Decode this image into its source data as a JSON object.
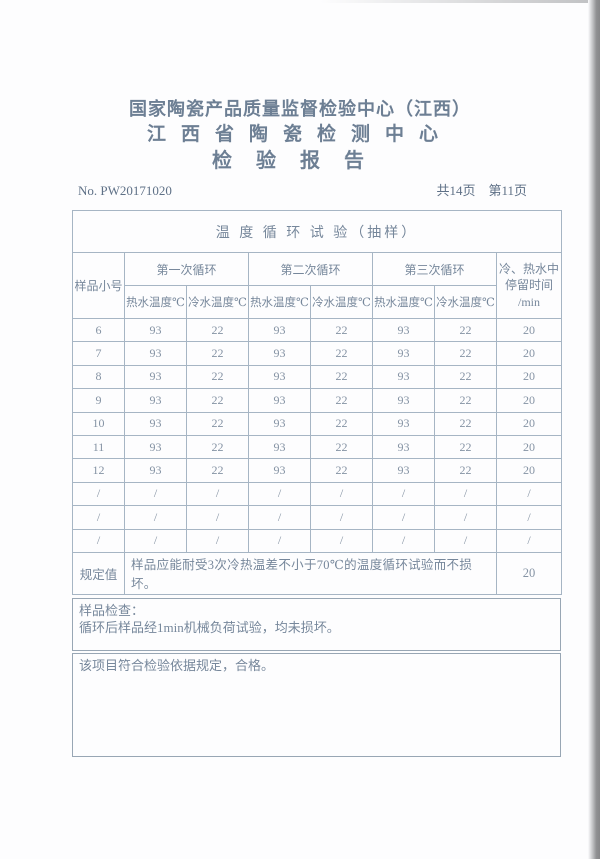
{
  "colors": {
    "ink": "#6d7f94",
    "table_ink": "#8593a4",
    "table_border": "#a6b5c4",
    "paper": "#fdfdfe",
    "scan_edge": "#8f9092"
  },
  "header": {
    "org_line1": "国家陶瓷产品质量监督检验中心（江西）",
    "org_line2": "江西省陶瓷检测中心",
    "report_title": "检验报告",
    "report_no": "No. PW20171020",
    "page_info": "共14页　第11页"
  },
  "table": {
    "title": "温 度 循 环 试 验（抽样）",
    "sample_col_header": "样品小号",
    "cycle_headers": [
      "第一次循环",
      "第二次循环",
      "第三次循环"
    ],
    "hot_header": "热水温度℃",
    "cold_header": "冷水温度℃",
    "dwell_header_line1": "冷、热水中",
    "dwell_header_line2": "停留时间",
    "dwell_header_line3": "/min",
    "rows": [
      [
        "6",
        "93",
        "22",
        "93",
        "22",
        "93",
        "22",
        "20"
      ],
      [
        "7",
        "93",
        "22",
        "93",
        "22",
        "93",
        "22",
        "20"
      ],
      [
        "8",
        "93",
        "22",
        "93",
        "22",
        "93",
        "22",
        "20"
      ],
      [
        "9",
        "93",
        "22",
        "93",
        "22",
        "93",
        "22",
        "20"
      ],
      [
        "10",
        "93",
        "22",
        "93",
        "22",
        "93",
        "22",
        "20"
      ],
      [
        "11",
        "93",
        "22",
        "93",
        "22",
        "93",
        "22",
        "20"
      ],
      [
        "12",
        "93",
        "22",
        "93",
        "22",
        "93",
        "22",
        "20"
      ],
      [
        "/",
        "/",
        "/",
        "/",
        "/",
        "/",
        "/",
        "/"
      ],
      [
        "/",
        "/",
        "/",
        "/",
        "/",
        "/",
        "/",
        "/"
      ],
      [
        "/",
        "/",
        "/",
        "/",
        "/",
        "/",
        "/",
        "/"
      ]
    ],
    "spec_label": "规定值",
    "spec_text": "样品应能耐受3次冷热温差不小于70℃的温度循环试验而不损坏。",
    "spec_dwell": "20"
  },
  "inspection": {
    "title": "样品检查：",
    "result": "循环后样品经1min机械负荷试验，均未损坏。"
  },
  "conclusion": "该项目符合检验依据规定，合格。"
}
